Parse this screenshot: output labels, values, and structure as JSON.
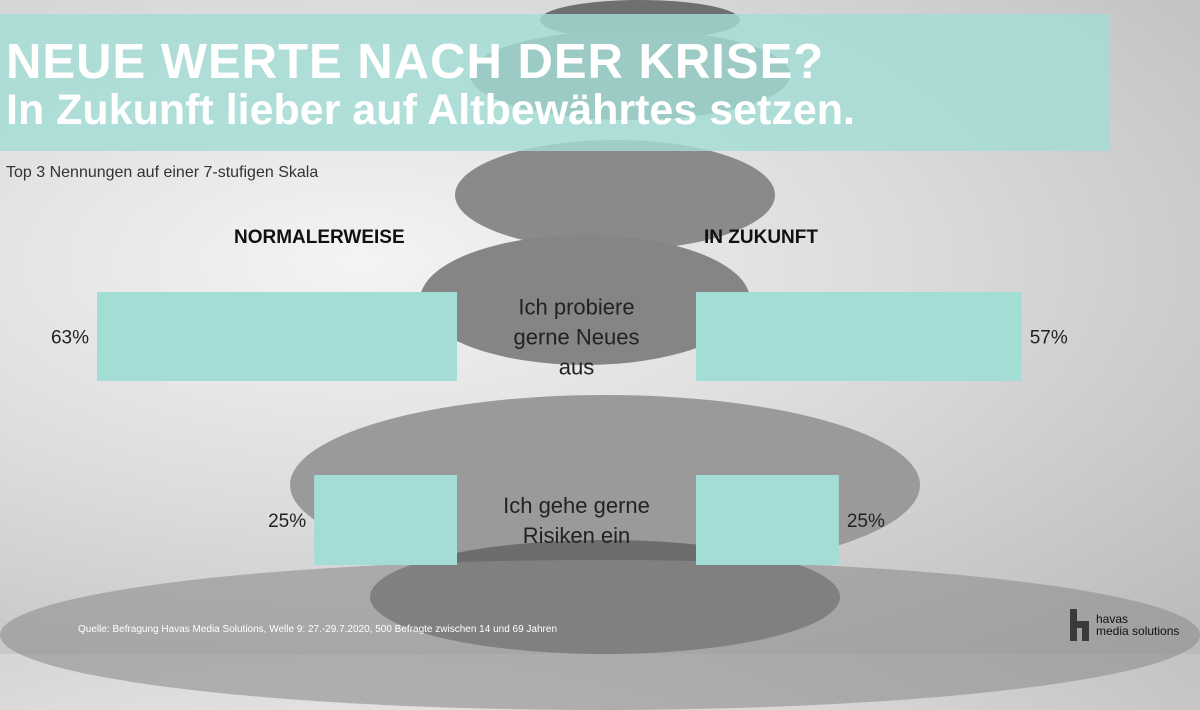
{
  "title": {
    "line1": "NEUE WERTE NACH DER KRISE?",
    "line2": "In Zukunft lieber auf Altbewährtes setzen."
  },
  "subtitle": "Top 3 Nennungen auf einer 7-stufigen Skala",
  "footer": {
    "source": "Quelle: Befragung Havas Media Solutions, Welle 9: 27.-29.7.2020, 500 Befragte zwischen 14 und 69 Jahren"
  },
  "logo": {
    "line1": "havas",
    "line2": "media solutions"
  },
  "colors": {
    "bar": "#a4ddd6",
    "title_bg": "#a4ddd6",
    "text": "#222222"
  },
  "chart_data": {
    "type": "bar",
    "orientation": "horizontal-butterfly",
    "title": "NEUE WERTE NACH DER KRISE?",
    "subtitle": "Top 3 Nennungen auf einer 7-stufigen Skala",
    "categories": [
      [
        "Ich probiere",
        "gerne Neues",
        "aus"
      ],
      [
        "Ich gehe gerne",
        "Risiken ein"
      ]
    ],
    "unit": "%",
    "xlim": [
      0,
      63
    ],
    "series": [
      {
        "name": "NORMALERWEISE",
        "values": [
          63,
          25
        ],
        "labels": [
          "63%",
          "25%"
        ]
      },
      {
        "name": "IN ZUKUNFT",
        "values": [
          57,
          25
        ],
        "labels": [
          "57%",
          "25%"
        ]
      }
    ],
    "grid": false
  }
}
